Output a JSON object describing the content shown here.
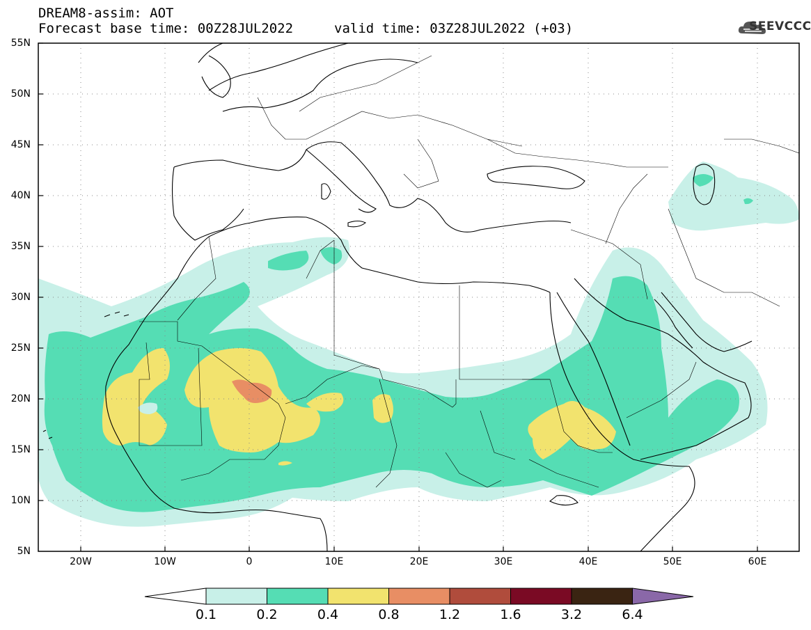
{
  "header": {
    "title": "DREAM8-assim: AOT",
    "base_time": "Forecast base time: 00Z28JUL2022",
    "valid_time": "valid time: 03Z28JUL2022 (+03)"
  },
  "logo": {
    "text": "SEEVCCC",
    "icon": "cloud-icon"
  },
  "map": {
    "projection": "lat-lon",
    "lon_range": [
      -25,
      65
    ],
    "lat_range": [
      5,
      55
    ],
    "grid": "dotted",
    "lat_labels": [
      "55N",
      "50N",
      "45N",
      "40N",
      "35N",
      "30N",
      "25N",
      "20N",
      "15N",
      "10N",
      "5N"
    ],
    "lon_labels": [
      "20W",
      "10W",
      "0",
      "10E",
      "20E",
      "30E",
      "40E",
      "50E",
      "60E"
    ]
  },
  "colorbar": {
    "thresholds": [
      "0.1",
      "0.2",
      "0.4",
      "0.8",
      "1.2",
      "1.6",
      "3.2",
      "6.4"
    ],
    "colors": [
      "#ffffff",
      "#c8f0e8",
      "#55ddb4",
      "#f2e36e",
      "#e88e64",
      "#b04c3c",
      "#7a0a24",
      "#3a2412",
      "#8a68a8"
    ]
  }
}
